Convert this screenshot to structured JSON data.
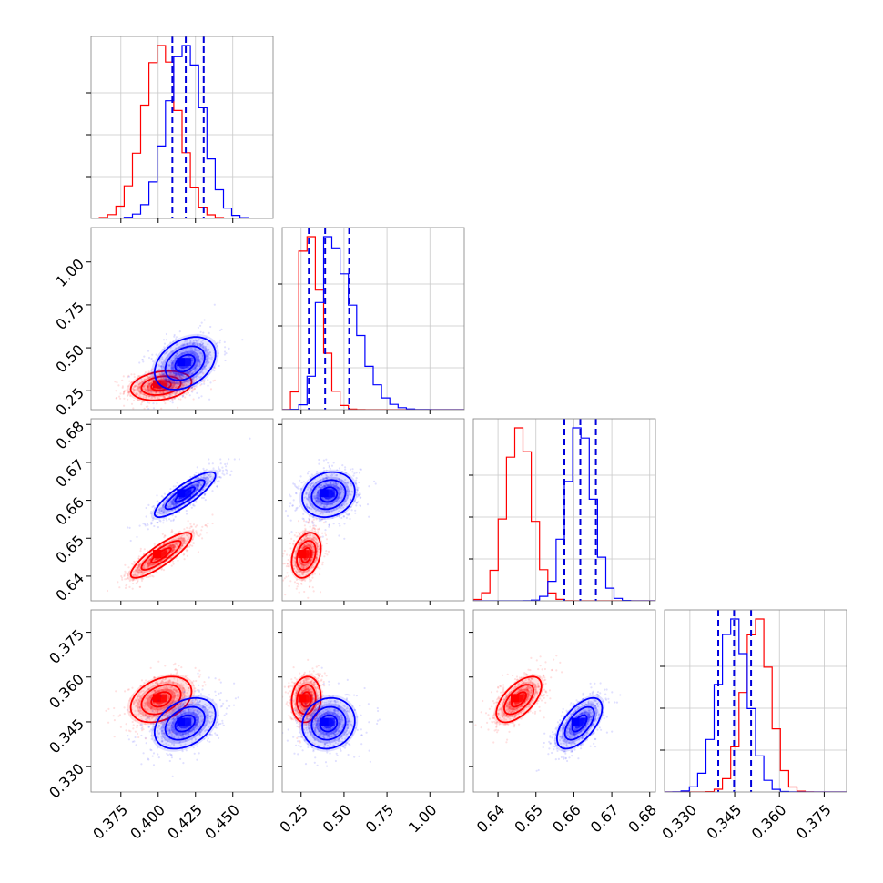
{
  "chart_data": {
    "type": "corner",
    "parameters": [
      {
        "ticks": [
          0.375,
          0.4,
          0.425,
          0.45
        ],
        "tick_labels": [
          "0.375",
          "0.400",
          "0.425",
          "0.450"
        ],
        "range": [
          0.355,
          0.477
        ]
      },
      {
        "ticks": [
          0.25,
          0.5,
          0.75,
          1.0
        ],
        "tick_labels": [
          "0.25",
          "0.50",
          "0.75",
          "1.00"
        ],
        "range": [
          0.14,
          1.2
        ]
      },
      {
        "ticks": [
          0.64,
          0.65,
          0.66,
          0.67,
          0.68
        ],
        "tick_labels": [
          "0.64",
          "0.65",
          "0.66",
          "0.67",
          "0.68"
        ],
        "range": [
          0.6335,
          0.6815
        ]
      },
      {
        "ticks": [
          0.33,
          0.345,
          0.36,
          0.375
        ],
        "tick_labels": [
          "0.330",
          "0.345",
          "0.360",
          "0.375"
        ],
        "range": [
          0.3215,
          0.3825
        ]
      }
    ],
    "series": [
      {
        "color": "#ff0000",
        "mean": [
          0.402,
          0.28,
          0.6455,
          0.3525
        ],
        "sd": [
          0.012,
          0.05,
          0.0035,
          0.0045
        ],
        "corr": [
          [
            1,
            0.25,
            0.85,
            0.35
          ],
          [
            0.25,
            1,
            0.3,
            0.1
          ],
          [
            0.85,
            0.3,
            1,
            0.6
          ],
          [
            0.35,
            0.1,
            0.6,
            1
          ]
        ]
      },
      {
        "color": "#0000ff",
        "mean": [
          0.418,
          0.41,
          0.6615,
          0.3445
        ],
        "sd": [
          0.012,
          0.09,
          0.0035,
          0.005
        ],
        "corr": [
          [
            1,
            0.35,
            0.85,
            0.35
          ],
          [
            0.35,
            1,
            0.15,
            0.1
          ],
          [
            0.85,
            0.15,
            1,
            0.6
          ],
          [
            0.35,
            0.1,
            0.6,
            1
          ]
        ]
      }
    ],
    "quantiles": [
      [
        0.4095,
        0.4185,
        0.4305
      ],
      [
        0.295,
        0.39,
        0.53
      ],
      [
        0.6575,
        0.6617,
        0.6658
      ],
      [
        0.3395,
        0.3448,
        0.3505
      ]
    ],
    "quantile_color": "#0000dd",
    "grid": true
  }
}
